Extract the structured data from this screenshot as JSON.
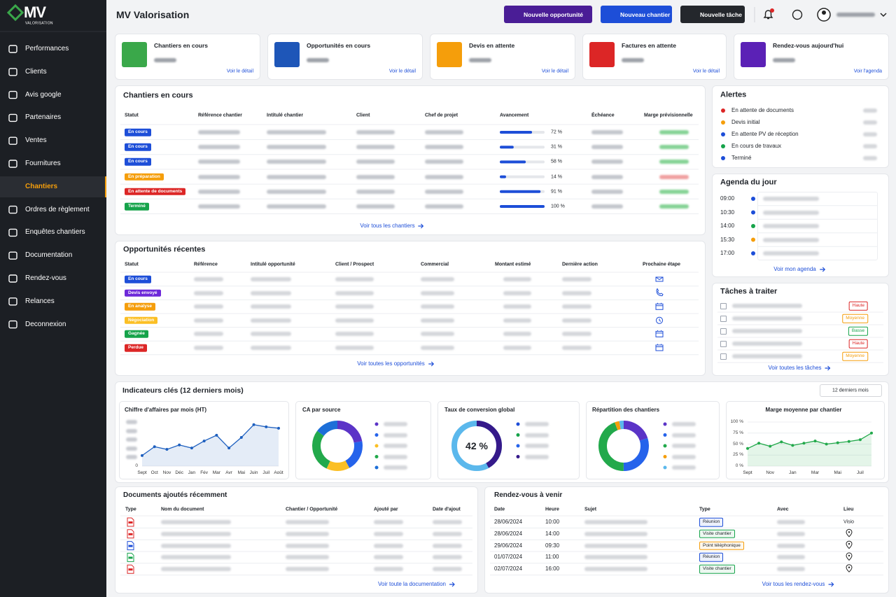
{
  "sidebar": {
    "logo": "MV",
    "logo_sub": "VALORISATION",
    "active": 6,
    "nav": [
      "Performances",
      "Clients",
      "Avis google",
      "Partenaires",
      "Ventes",
      "Fournitures",
      "Chantiers",
      "Ordres de règlement",
      "Enquêtes chantiers",
      "Documentation",
      "Rendez-vous",
      "Relances",
      "Deconnexion"
    ]
  },
  "header": {
    "title": "MV Valorisation",
    "buttons": [
      {
        "label": "Nouvelle opportunité",
        "color": "#4a1d96"
      },
      {
        "label": "Nouveau chantier",
        "color": "#1d4ed8"
      },
      {
        "label": "Nouvelle tâche",
        "color": "#24272c"
      }
    ]
  },
  "kpis": [
    {
      "title": "Chantiers en cours",
      "link": "Voir le détail",
      "color": "#3aa84a"
    },
    {
      "title": "Opportunités en cours",
      "link": "Voir le détail",
      "color": "#1e56b8"
    },
    {
      "title": "Devis en attente",
      "link": "Voir le détail",
      "color": "#f59e0b"
    },
    {
      "title": "Factures en attente",
      "link": "Voir le détail",
      "color": "#dc2626"
    },
    {
      "title": "Rendez-vous aujourd'hui",
      "link": "Voir l'agenda",
      "color": "#5b21b6"
    }
  ],
  "chantiers": {
    "title": "Chantiers en cours",
    "columns": [
      "Statut",
      "Référence chantier",
      "Intitulé chantier",
      "Client",
      "Chef de projet",
      "Avancement",
      "Échéance",
      "Marge prévisionnelle"
    ],
    "rows": [
      {
        "status": "En cours",
        "status_color": "#1d4ed8",
        "progress": 72,
        "progress_label": "72 %"
      },
      {
        "status": "En cours",
        "status_color": "#1d4ed8",
        "progress": 31,
        "progress_label": "31 %"
      },
      {
        "status": "En cours",
        "status_color": "#1d4ed8",
        "progress": 58,
        "progress_label": "58 %"
      },
      {
        "status": "En préparation",
        "status_color": "#f59e0b",
        "progress": 14,
        "progress_label": "14 %"
      },
      {
        "status": "En attente de documents",
        "status_color": "#dc2626",
        "progress": 91,
        "progress_label": "91 %"
      },
      {
        "status": "Terminé",
        "status_color": "#16a34a",
        "progress": 100,
        "progress_label": "100 %"
      }
    ],
    "link": "Voir tous les chantiers"
  },
  "opportunites": {
    "title": "Opportunités récentes",
    "columns": [
      "Statut",
      "Référence",
      "Intitulé opportunité",
      "Client / Prospect",
      "Commercial",
      "Montant estimé",
      "Dernière action",
      "Prochaine étape"
    ],
    "rows": [
      {
        "status": "En cours",
        "status_color": "#1d4ed8"
      },
      {
        "status": "Devis envoyé",
        "status_color": "#6d28d9"
      },
      {
        "status": "En analyse",
        "status_color": "#f59e0b"
      },
      {
        "status": "Négociation",
        "status_color": "#fbbf24"
      },
      {
        "status": "Gagnée",
        "status_color": "#16a34a"
      },
      {
        "status": "Perdue",
        "status_color": "#dc2626"
      }
    ],
    "link": "Voir toutes les opportunités"
  },
  "alertes": {
    "title": "Alertes",
    "items": [
      {
        "label": "En attente de documents",
        "color": "#dc2626"
      },
      {
        "label": "Devis initial",
        "color": "#f59e0b"
      },
      {
        "label": "En attente PV de réception",
        "color": "#1d4ed8"
      },
      {
        "label": "En cours de travaux",
        "color": "#16a34a"
      },
      {
        "label": "Terminé",
        "color": "#1d4ed8"
      }
    ]
  },
  "agenda": {
    "title": "Agenda du jour",
    "items": [
      {
        "time": "09:00",
        "color": "#1d4ed8"
      },
      {
        "time": "10:30",
        "color": "#1d4ed8"
      },
      {
        "time": "14:00",
        "color": "#16a34a"
      },
      {
        "time": "15:30",
        "color": "#f59e0b"
      },
      {
        "time": "17:00",
        "color": "#1d4ed8"
      }
    ],
    "link": "Voir mon agenda"
  },
  "taches": {
    "title": "Tâches à traiter",
    "items": [
      {
        "priority": "Haute",
        "color": "#dc2626"
      },
      {
        "priority": "Moyenne",
        "color": "#f59e0b"
      },
      {
        "priority": "Basse",
        "color": "#16a34a"
      },
      {
        "priority": "Haute",
        "color": "#dc2626"
      },
      {
        "priority": "Moyenne",
        "color": "#f59e0b"
      }
    ],
    "link": "Voir toutes les tâches"
  },
  "indicateurs": {
    "title": "Indicateurs clés (12 derniers mois)",
    "period": "12 derniers mois"
  },
  "chart_data": [
    {
      "type": "line",
      "title": "Chiffre d'affaires par mois (HT)",
      "categories": [
        "Sept",
        "Oct",
        "Nov",
        "Déc",
        "Jan",
        "Fév",
        "Mar",
        "Avr",
        "Mai",
        "Juin",
        "Juil",
        "Août"
      ],
      "values": [
        24,
        44,
        38,
        48,
        41,
        57,
        70,
        41,
        65,
        94,
        89,
        86
      ],
      "color": "#1d5fbf",
      "area": true,
      "ylim": [
        0,
        100
      ],
      "yticks": [
        0
      ]
    },
    {
      "type": "donut",
      "title": "CA par source",
      "values": [
        22,
        20,
        15,
        28,
        15
      ],
      "colors": [
        "#5b34c7",
        "#2563eb",
        "#fbbf24",
        "#22a94b",
        "#1d6fd8"
      ]
    },
    {
      "type": "gauge",
      "title": "Taux de conversion global",
      "values": [
        42
      ],
      "value_labels": [
        "42 %"
      ],
      "ylim": [
        0,
        100
      ],
      "colors": [
        "#35198a",
        "#5bb8ec"
      ]
    },
    {
      "type": "donut",
      "title": "Répartition des chantiers",
      "values": [
        20,
        30,
        44,
        3,
        3
      ],
      "colors": [
        "#5b34c7",
        "#2563eb",
        "#22a94b",
        "#f59e0b",
        "#5bb8ec"
      ]
    },
    {
      "type": "line",
      "title": "Marge moyenne par chantier",
      "categories": [
        "Sept",
        null,
        "Nov",
        null,
        "Jan",
        null,
        "Mar",
        null,
        "Mai",
        null,
        "Juil",
        null
      ],
      "values": [
        40,
        52,
        45,
        55,
        47,
        52,
        57,
        50,
        53,
        56,
        60,
        75
      ],
      "color": "#22a94b",
      "area": true,
      "ylim": [
        0,
        100
      ],
      "yticks": [
        {
          "value": 0,
          "label": "0 %"
        },
        {
          "value": 25,
          "label": "25 %"
        },
        {
          "value": 50,
          "label": "50 %"
        },
        {
          "value": 75,
          "label": "75 %"
        },
        {
          "value": 100,
          "label": "100 %"
        }
      ]
    }
  ],
  "documents": {
    "title": "Documents ajoutés récemment",
    "columns": [
      "Type",
      "Nom du document",
      "Chantier / Opportunité",
      "Ajouté par",
      "Date d'ajout"
    ],
    "link": "Voir toute la documentation"
  },
  "rendezvous": {
    "title": "Rendez-vous à venir",
    "columns": [
      "Date",
      "Heure",
      "Sujet",
      "Type",
      "Avec",
      "Lieu"
    ],
    "rows": [
      {
        "date": "28/06/2024",
        "time": "10:00",
        "type": "Réunion",
        "type_color": "#1d4ed8",
        "lieu": "Visio"
      },
      {
        "date": "28/06/2024",
        "time": "14:00",
        "type": "Visite chantier",
        "type_color": "#16a34a"
      },
      {
        "date": "29/06/2024",
        "time": "09:30",
        "type": "Point téléphonique",
        "type_color": "#f59e0b"
      },
      {
        "date": "01/07/2024",
        "time": "11:00",
        "type": "Réunion",
        "type_color": "#1d4ed8"
      },
      {
        "date": "02/07/2024",
        "time": "16:00",
        "type": "Visite chantier",
        "type_color": "#16a34a"
      }
    ],
    "link": "Voir tous les rendez-vous"
  }
}
